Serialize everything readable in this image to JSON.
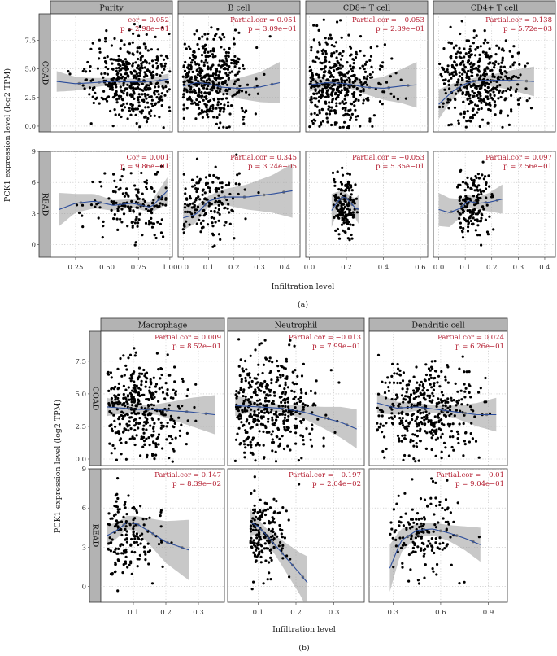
{
  "figure": {
    "a": {
      "sublabel": "(a)",
      "ylabel": "PCK1 expression level (log2 TPM)",
      "xlabel": "Infiltration level",
      "columns": [
        "Purity",
        "B cell",
        "CD8+ T cell",
        "CD4+ T cell"
      ],
      "rows": [
        "COAD",
        "READ"
      ],
      "row_yticks": [
        [
          "0.0",
          "2.5",
          "5.0",
          "7.5"
        ],
        [
          "0",
          "3",
          "6",
          "9"
        ]
      ],
      "col_xticks": [
        [
          "0.25",
          "0.50",
          "0.75",
          "1.00"
        ],
        [
          "0.0",
          "0.1",
          "0.2",
          "0.3",
          "0.4"
        ],
        [
          "0.0",
          "0.2",
          "0.4",
          "0.6"
        ],
        [
          "0.0",
          "0.1",
          "0.2",
          "0.3",
          "0.4"
        ]
      ],
      "stats": [
        [
          [
            "cor = 0.052",
            "p = 2.98e−01"
          ],
          [
            "Partial.cor = 0.051",
            "p = 3.09e−01"
          ],
          [
            "Partial.cor = −0.053",
            "p = 2.89e−01"
          ],
          [
            "Partial.cor = 0.138",
            "p = 5.72e−03"
          ]
        ],
        [
          [
            "Cor = 0.001",
            "p = 9.86e−01"
          ],
          [
            "Partial.cor = 0.345",
            "p = 3.24e−05"
          ],
          [
            "Partial.cor = −0.053",
            "p = 5.35e−01"
          ],
          [
            "Partial.cor = 0.097",
            "p = 2.56e−01"
          ]
        ]
      ]
    },
    "b": {
      "sublabel": "(b)",
      "ylabel": "PCK1 expression level (log2 TPM)",
      "xlabel": "Infiltration level",
      "columns": [
        "Macrophage",
        "Neutrophil",
        "Dendritic cell"
      ],
      "rows": [
        "COAD",
        "READ"
      ],
      "row_yticks": [
        [
          "0.0",
          "2.5",
          "5.0",
          "7.5"
        ],
        [
          "0",
          "3",
          "6",
          "9"
        ]
      ],
      "col_xticks": [
        [
          "0.1",
          "0.2",
          "0.3"
        ],
        [
          "0.1",
          "0.2",
          "0.3"
        ],
        [
          "0.3",
          "0.6",
          "0.9"
        ]
      ],
      "stats": [
        [
          [
            "Partial.cor = 0.009",
            "p = 8.52e−01"
          ],
          [
            "Partial.cor = −0.013",
            "p = 7.99e−01"
          ],
          [
            "Partial.cor = 0.024",
            "p = 6.26e−01"
          ]
        ],
        [
          [
            "Partial.cor = 0.147",
            "p = 8.39e−02"
          ],
          [
            "Partial.cor = −0.197",
            "p = 2.04e−02"
          ],
          [
            "Partial.cor = −0.01",
            "p = 9.04e−01"
          ]
        ]
      ]
    }
  },
  "chart_data": [
    {
      "type": "scatter",
      "panel": "COAD / Purity",
      "xlim": [
        0.05,
        1.02
      ],
      "ylim": [
        -0.5,
        9.8
      ],
      "n": 420,
      "x_range": [
        0.15,
        1.0
      ],
      "x_center": 0.7,
      "y_center": 3.9,
      "y_spread": 1.8,
      "trend": [
        [
          0.1,
          3.9
        ],
        [
          0.25,
          3.7
        ],
        [
          0.4,
          3.8
        ],
        [
          0.55,
          3.9
        ],
        [
          0.7,
          3.85
        ],
        [
          0.85,
          3.9
        ],
        [
          0.99,
          4.1
        ]
      ],
      "band": [
        0.9,
        0.6,
        0.4,
        0.3,
        0.3,
        0.3,
        0.5
      ]
    },
    {
      "type": "scatter",
      "panel": "COAD / B cell",
      "xlim": [
        -0.02,
        0.46
      ],
      "ylim": [
        -0.5,
        9.8
      ],
      "n": 420,
      "x_range": [
        0.0,
        0.38
      ],
      "x_center": 0.1,
      "y_center": 3.8,
      "y_spread": 1.9,
      "trend": [
        [
          0.0,
          3.5
        ],
        [
          0.05,
          3.8
        ],
        [
          0.1,
          3.7
        ],
        [
          0.15,
          3.4
        ],
        [
          0.22,
          3.3
        ],
        [
          0.3,
          3.4
        ],
        [
          0.38,
          3.8
        ]
      ],
      "band": [
        0.7,
        0.3,
        0.3,
        0.5,
        0.9,
        1.3,
        1.8
      ]
    },
    {
      "type": "scatter",
      "panel": "COAD / CD8+ T cell",
      "xlim": [
        -0.02,
        0.64
      ],
      "ylim": [
        -0.5,
        9.8
      ],
      "n": 420,
      "x_range": [
        0.0,
        0.58
      ],
      "x_center": 0.15,
      "y_center": 3.8,
      "y_spread": 1.9,
      "trend": [
        [
          0.0,
          3.6
        ],
        [
          0.1,
          3.8
        ],
        [
          0.2,
          3.7
        ],
        [
          0.3,
          3.4
        ],
        [
          0.4,
          3.3
        ],
        [
          0.5,
          3.5
        ],
        [
          0.58,
          3.6
        ]
      ],
      "band": [
        0.6,
        0.3,
        0.3,
        0.6,
        1.0,
        1.5,
        2.0
      ]
    },
    {
      "type": "scatter",
      "panel": "COAD / CD4+ T cell",
      "xlim": [
        -0.02,
        0.44
      ],
      "ylim": [
        -0.5,
        9.8
      ],
      "n": 420,
      "x_range": [
        0.0,
        0.36
      ],
      "x_center": 0.14,
      "y_center": 3.9,
      "y_spread": 1.8,
      "trend": [
        [
          0.0,
          1.9
        ],
        [
          0.05,
          3.0
        ],
        [
          0.1,
          3.7
        ],
        [
          0.15,
          4.0
        ],
        [
          0.2,
          4.0
        ],
        [
          0.28,
          4.0
        ],
        [
          0.36,
          3.9
        ]
      ],
      "band": [
        1.3,
        0.7,
        0.3,
        0.3,
        0.5,
        0.9,
        1.3
      ]
    },
    {
      "type": "scatter",
      "panel": "READ / Purity",
      "xlim": [
        0.05,
        1.02
      ],
      "ylim": [
        -1.2,
        9.0
      ],
      "n": 160,
      "x_range": [
        0.1,
        0.98
      ],
      "x_center": 0.72,
      "y_center": 3.8,
      "y_spread": 1.6,
      "trend": [
        [
          0.12,
          3.4
        ],
        [
          0.25,
          4.0
        ],
        [
          0.4,
          4.2
        ],
        [
          0.55,
          3.8
        ],
        [
          0.7,
          4.0
        ],
        [
          0.85,
          3.6
        ],
        [
          0.98,
          5.2
        ]
      ],
      "band": [
        1.6,
        0.9,
        0.7,
        0.5,
        0.4,
        0.5,
        1.3
      ]
    },
    {
      "type": "scatter",
      "panel": "READ / B cell",
      "xlim": [
        -0.02,
        0.46
      ],
      "ylim": [
        -1.2,
        9.0
      ],
      "n": 160,
      "x_range": [
        0.0,
        0.3
      ],
      "x_center": 0.1,
      "y_center": 3.9,
      "y_spread": 1.6,
      "trend": [
        [
          0.0,
          2.6
        ],
        [
          0.05,
          2.9
        ],
        [
          0.1,
          4.2
        ],
        [
          0.15,
          4.6
        ],
        [
          0.25,
          4.6
        ],
        [
          0.35,
          4.9
        ],
        [
          0.43,
          5.2
        ]
      ],
      "band": [
        1.2,
        0.8,
        0.5,
        0.7,
        1.2,
        1.8,
        2.6
      ]
    },
    {
      "type": "scatter",
      "panel": "READ / CD8+ T cell",
      "xlim": [
        -0.02,
        0.64
      ],
      "ylim": [
        -1.2,
        9.0
      ],
      "n": 160,
      "x_range": [
        0.12,
        0.27
      ],
      "x_center": 0.19,
      "y_center": 3.9,
      "y_spread": 1.6,
      "trend": [
        [
          0.12,
          3.3
        ],
        [
          0.15,
          4.1
        ],
        [
          0.18,
          4.6
        ],
        [
          0.2,
          4.5
        ],
        [
          0.23,
          3.9
        ],
        [
          0.25,
          3.5
        ],
        [
          0.27,
          3.4
        ]
      ],
      "band": [
        1.6,
        1.0,
        0.6,
        0.5,
        0.7,
        1.0,
        1.5
      ]
    },
    {
      "type": "scatter",
      "panel": "READ / CD4+ T cell",
      "xlim": [
        -0.02,
        0.44
      ],
      "ylim": [
        -1.2,
        9.0
      ],
      "n": 160,
      "x_range": [
        0.07,
        0.24
      ],
      "x_center": 0.13,
      "y_center": 3.9,
      "y_spread": 1.6,
      "trend": [
        [
          0.0,
          3.4
        ],
        [
          0.04,
          3.1
        ],
        [
          0.08,
          3.5
        ],
        [
          0.11,
          4.2
        ],
        [
          0.15,
          4.0
        ],
        [
          0.19,
          4.1
        ],
        [
          0.24,
          4.4
        ]
      ],
      "band": [
        1.6,
        1.4,
        0.9,
        0.6,
        0.6,
        0.9,
        1.4
      ]
    },
    {
      "type": "scatter",
      "panel": "COAD / Macrophage",
      "xlim": [
        0.0,
        0.38
      ],
      "ylim": [
        -0.5,
        9.8
      ],
      "n": 380,
      "x_range": [
        0.02,
        0.35
      ],
      "x_center": 0.12,
      "y_center": 3.8,
      "y_spread": 1.9,
      "trend": [
        [
          0.02,
          4.0
        ],
        [
          0.07,
          3.9
        ],
        [
          0.12,
          3.8
        ],
        [
          0.17,
          3.8
        ],
        [
          0.22,
          3.7
        ],
        [
          0.28,
          3.6
        ],
        [
          0.35,
          3.4
        ]
      ],
      "band": [
        0.7,
        0.4,
        0.3,
        0.4,
        0.7,
        1.1,
        1.5
      ]
    },
    {
      "type": "scatter",
      "panel": "COAD / Neutrophil",
      "xlim": [
        0.02,
        0.38
      ],
      "ylim": [
        -0.5,
        9.8
      ],
      "n": 400,
      "x_range": [
        0.04,
        0.36
      ],
      "x_center": 0.13,
      "y_center": 3.9,
      "y_spread": 1.9,
      "trend": [
        [
          0.04,
          4.1
        ],
        [
          0.1,
          4.0
        ],
        [
          0.16,
          3.9
        ],
        [
          0.22,
          3.6
        ],
        [
          0.27,
          3.2
        ],
        [
          0.32,
          2.8
        ],
        [
          0.36,
          2.3
        ]
      ],
      "band": [
        0.8,
        0.3,
        0.3,
        0.5,
        0.8,
        1.2,
        1.5
      ]
    },
    {
      "type": "scatter",
      "panel": "COAD / Dendritic cell",
      "xlim": [
        0.15,
        1.02
      ],
      "ylim": [
        -0.5,
        9.8
      ],
      "n": 400,
      "x_range": [
        0.2,
        0.95
      ],
      "x_center": 0.5,
      "y_center": 3.9,
      "y_spread": 1.8,
      "trend": [
        [
          0.2,
          4.3
        ],
        [
          0.32,
          3.9
        ],
        [
          0.45,
          4.0
        ],
        [
          0.58,
          3.8
        ],
        [
          0.7,
          3.6
        ],
        [
          0.83,
          3.4
        ],
        [
          0.95,
          3.4
        ]
      ],
      "band": [
        0.8,
        0.5,
        0.3,
        0.3,
        0.5,
        0.9,
        1.3
      ]
    },
    {
      "type": "scatter",
      "panel": "READ / Macrophage",
      "xlim": [
        0.0,
        0.38
      ],
      "ylim": [
        -1.2,
        9.0
      ],
      "n": 160,
      "x_range": [
        0.02,
        0.27
      ],
      "x_center": 0.08,
      "y_center": 3.9,
      "y_spread": 1.6,
      "trend": [
        [
          0.02,
          3.9
        ],
        [
          0.05,
          4.3
        ],
        [
          0.08,
          4.9
        ],
        [
          0.11,
          4.8
        ],
        [
          0.15,
          4.2
        ],
        [
          0.2,
          3.4
        ],
        [
          0.27,
          2.8
        ]
      ],
      "band": [
        0.8,
        0.6,
        0.5,
        0.6,
        1.0,
        1.6,
        2.3
      ]
    },
    {
      "type": "scatter",
      "panel": "READ / Neutrophil",
      "xlim": [
        0.02,
        0.38
      ],
      "ylim": [
        -1.2,
        9.0
      ],
      "n": 160,
      "x_range": [
        0.08,
        0.23
      ],
      "x_center": 0.11,
      "y_center": 4.0,
      "y_spread": 1.6,
      "trend": [
        [
          0.08,
          4.9
        ],
        [
          0.1,
          4.6
        ],
        [
          0.12,
          4.0
        ],
        [
          0.15,
          3.0
        ],
        [
          0.18,
          2.0
        ],
        [
          0.21,
          1.0
        ],
        [
          0.23,
          0.3
        ]
      ],
      "band": [
        1.0,
        0.6,
        0.5,
        0.8,
        1.2,
        1.6,
        2.0
      ]
    },
    {
      "type": "scatter",
      "panel": "READ / Dendritic cell",
      "xlim": [
        0.15,
        1.02
      ],
      "ylim": [
        -1.2,
        9.0
      ],
      "n": 160,
      "x_range": [
        0.28,
        0.85
      ],
      "x_center": 0.5,
      "y_center": 3.9,
      "y_spread": 1.6,
      "trend": [
        [
          0.28,
          1.4
        ],
        [
          0.35,
          3.5
        ],
        [
          0.45,
          4.3
        ],
        [
          0.55,
          4.4
        ],
        [
          0.65,
          4.1
        ],
        [
          0.75,
          3.7
        ],
        [
          0.85,
          3.2
        ]
      ],
      "band": [
        1.8,
        0.9,
        0.5,
        0.5,
        0.6,
        0.9,
        1.3
      ]
    }
  ]
}
